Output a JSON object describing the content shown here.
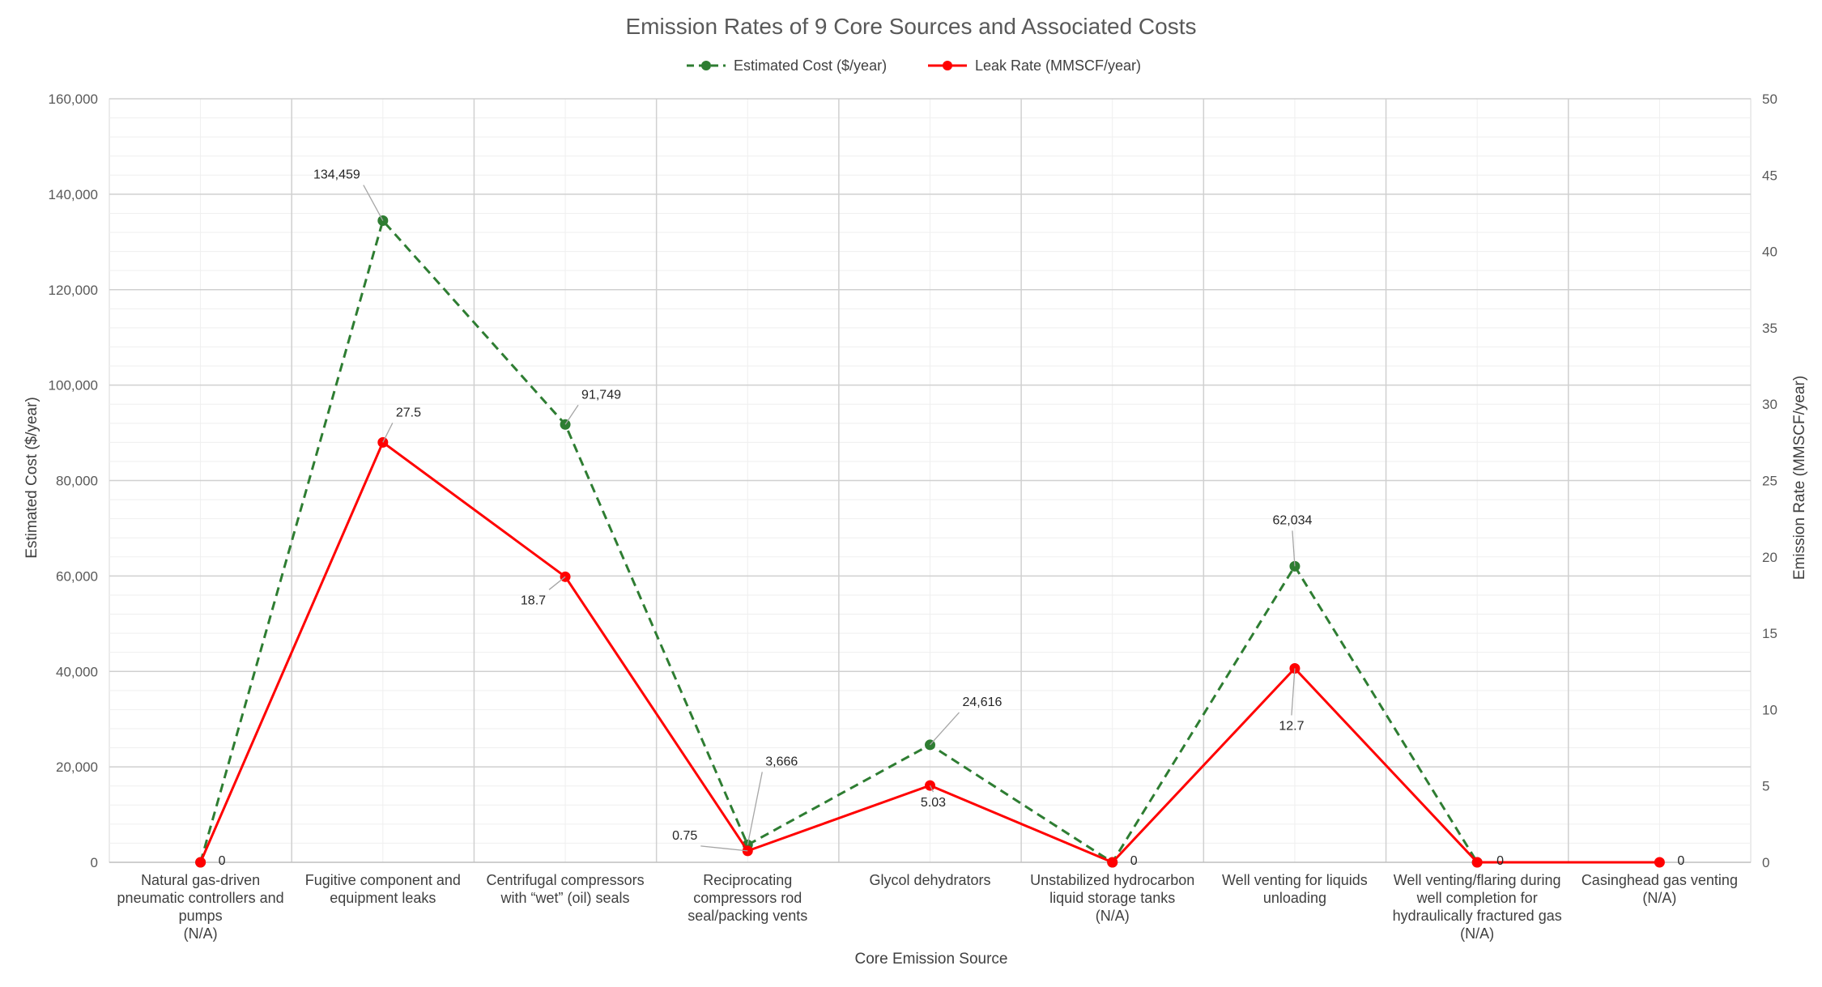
{
  "chart_data": {
    "type": "line",
    "title": "Emission Rates of 9 Core Sources and Associated Costs",
    "xlabel": "Core Emission Source",
    "ylabel": "Estimated Cost ($/year)",
    "y2label": "Emission Rate (MMSCF/year)",
    "ylim": [
      0,
      160000
    ],
    "y2lim": [
      0,
      50
    ],
    "grid": true,
    "legend_position": "top",
    "categories": [
      [
        "Natural gas-driven",
        "pneumatic controllers and",
        "pumps",
        "(N/A)"
      ],
      [
        "Fugitive component and",
        "equipment leaks"
      ],
      [
        "Centrifugal compressors",
        "with “wet” (oil) seals"
      ],
      [
        "Reciprocating",
        "compressors rod",
        "seal/packing vents"
      ],
      [
        "Glycol dehydrators"
      ],
      [
        "Unstabilized hydrocarbon",
        "liquid storage tanks",
        "(N/A)"
      ],
      [
        "Well venting for liquids",
        "unloading"
      ],
      [
        "Well venting/flaring during",
        "well completion for",
        "hydraulically fractured gas",
        "(N/A)"
      ],
      [
        "Casinghead gas venting",
        "(N/A)"
      ]
    ],
    "y_ticks": [
      "0",
      "20,000",
      "40,000",
      "60,000",
      "80,000",
      "100,000",
      "120,000",
      "140,000",
      "160,000"
    ],
    "y2_ticks": [
      "0",
      "5",
      "10",
      "15",
      "20",
      "25",
      "30",
      "35",
      "40",
      "45",
      "50"
    ],
    "series": [
      {
        "name": "Estimated Cost ($/year)",
        "axis": "left",
        "color": "#2e7d32",
        "dash": true,
        "values": [
          0,
          134459,
          91749,
          3666,
          24616,
          0,
          62034,
          0,
          null
        ],
        "labels": [
          null,
          "134,459",
          "91,749",
          "3,666",
          "24,616",
          null,
          "62,034",
          null,
          null
        ]
      },
      {
        "name": "Leak Rate (MMSCF/year)",
        "axis": "right",
        "color": "#ff0000",
        "dash": false,
        "values": [
          0,
          27.5,
          18.7,
          0.75,
          5.03,
          0,
          12.7,
          0,
          0
        ],
        "labels": [
          "0",
          "27.5",
          "18.7",
          "0.75",
          "5.03",
          "0",
          "12.7",
          "0",
          "0"
        ]
      }
    ]
  }
}
